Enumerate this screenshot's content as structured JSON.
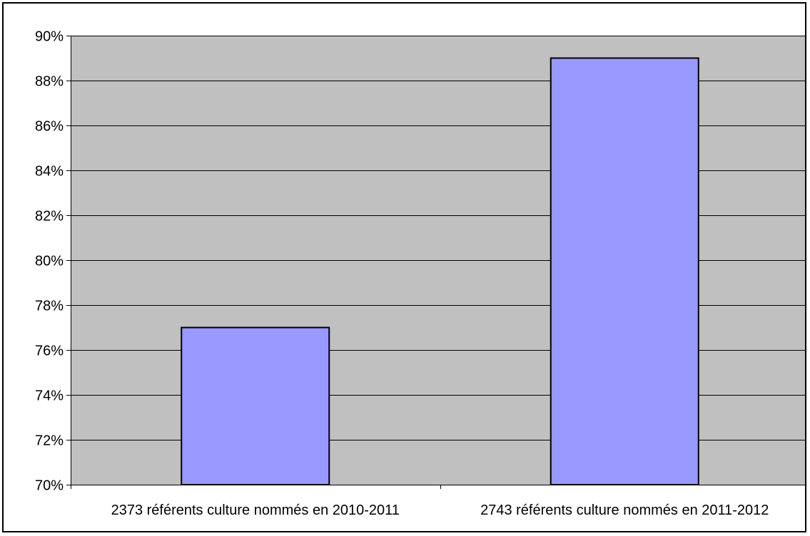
{
  "chart_data": {
    "type": "bar",
    "title": "",
    "xlabel": "",
    "ylabel": "",
    "categories": [
      "2373 référents culture nommés en 2010-2011",
      "2743 référents culture nommés en 2011-2012"
    ],
    "values": [
      0.77,
      0.89
    ],
    "ylim": [
      0.7,
      0.9
    ],
    "y_ticks": [
      "70%",
      "72%",
      "74%",
      "76%",
      "78%",
      "80%",
      "82%",
      "84%",
      "86%",
      "88%",
      "90%"
    ],
    "grid": true,
    "legend": "none",
    "colors": {
      "bar_fill": "#9999ff",
      "bar_stroke": "#000000",
      "plot_background": "#c0c0c0",
      "gridline": "#000000"
    }
  }
}
